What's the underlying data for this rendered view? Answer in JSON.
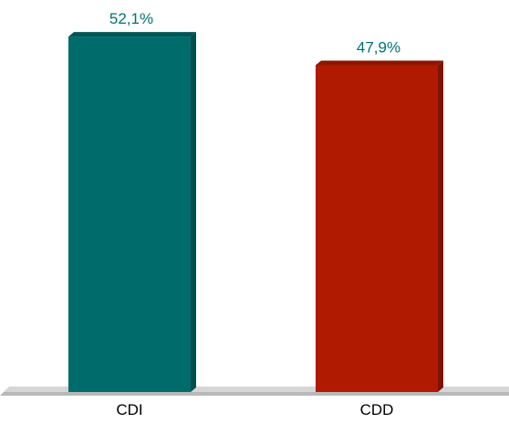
{
  "chart_data": {
    "type": "bar",
    "categories": [
      "CDI",
      "CDD"
    ],
    "values": [
      52.1,
      47.9
    ],
    "data_labels": [
      "52,1%",
      "47,9%"
    ],
    "value_unit": "%",
    "ylim": [
      0,
      60
    ],
    "grid": false,
    "legend": "none",
    "bar_colors": [
      "#006b6b",
      "#b01a00"
    ],
    "bar_side_colors": [
      "#004e4e",
      "#7f1200"
    ],
    "bar_top_colors": [
      "#005656",
      "#8e1400"
    ],
    "floor_color": "#b8b8b8",
    "label_colors": [
      "#007272",
      "#007272"
    ],
    "category_label_color": "#000000"
  }
}
